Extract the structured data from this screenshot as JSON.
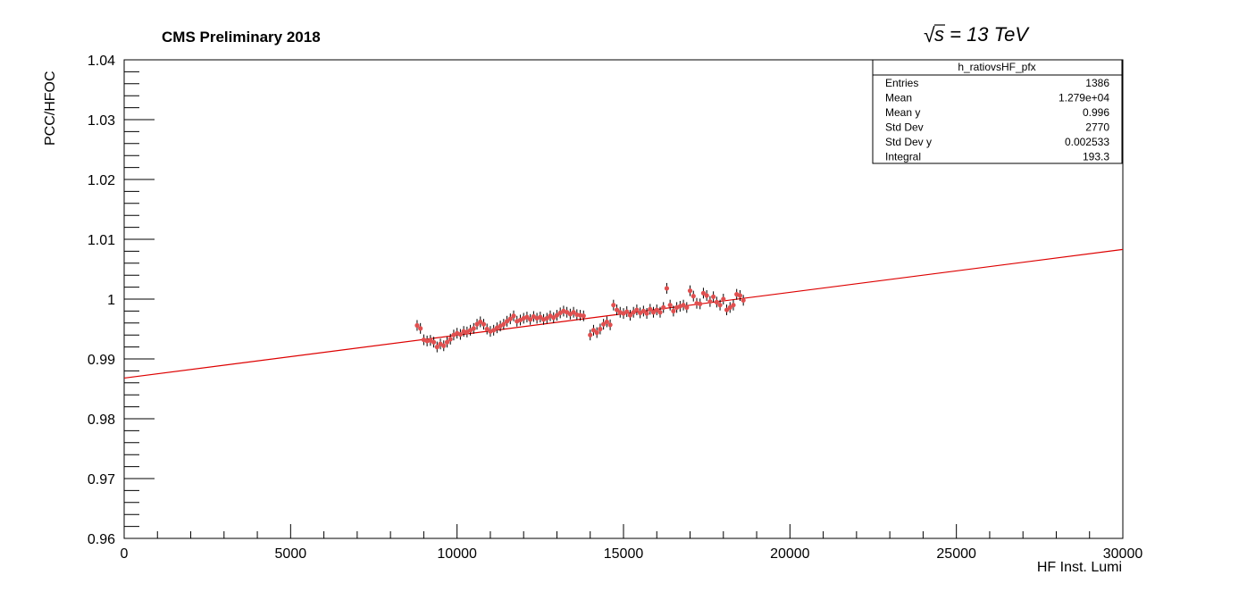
{
  "header": {
    "title": "CMS Preliminary 2018",
    "energy_label": "s = 13 TeV"
  },
  "stats_box": {
    "name": "h_ratiovsHF_pfx",
    "rows": [
      {
        "label": "Entries",
        "value": "1386"
      },
      {
        "label": "Mean",
        "value": "1.279e+04"
      },
      {
        "label": "Mean y",
        "value": "0.996"
      },
      {
        "label": "Std Dev",
        "value": "2770"
      },
      {
        "label": "Std Dev y",
        "value": "0.002533"
      },
      {
        "label": "Integral",
        "value": "193.3"
      }
    ]
  },
  "colors": {
    "markers": "#e05050",
    "fit_line": "#dd0000",
    "error_bars": "#000000",
    "axes": "#000000"
  },
  "chart_data": {
    "type": "scatter",
    "xlabel": "HF Inst. Lumi",
    "ylabel": "PCC/HFOC",
    "xlim": [
      0,
      30000
    ],
    "ylim": [
      0.96,
      1.04
    ],
    "x_ticks": [
      0,
      5000,
      10000,
      15000,
      20000,
      25000,
      30000
    ],
    "x_tick_labels": [
      "0",
      "5000",
      "10000",
      "15000",
      "20000",
      "25000",
      "30000"
    ],
    "y_ticks": [
      0.96,
      0.97,
      0.98,
      0.99,
      1.0,
      1.01,
      1.02,
      1.03,
      1.04
    ],
    "y_tick_labels": [
      "0.96",
      "0.97",
      "0.98",
      "0.99",
      "1",
      "1.01",
      "1.02",
      "1.03",
      "1.04"
    ],
    "grid": false,
    "legend": "none",
    "fit_line": {
      "x": [
        0,
        30000
      ],
      "y": [
        0.9868,
        1.0083
      ]
    },
    "series": [
      {
        "points": [
          [
            8800,
            0.9956
          ],
          [
            8900,
            0.9951
          ],
          [
            9000,
            0.9932
          ],
          [
            9100,
            0.993
          ],
          [
            9200,
            0.9931
          ],
          [
            9300,
            0.9928
          ],
          [
            9400,
            0.992
          ],
          [
            9500,
            0.9925
          ],
          [
            9600,
            0.9922
          ],
          [
            9700,
            0.9928
          ],
          [
            9800,
            0.9933
          ],
          [
            9900,
            0.994
          ],
          [
            10000,
            0.9943
          ],
          [
            10100,
            0.9941
          ],
          [
            10200,
            0.9946
          ],
          [
            10300,
            0.9945
          ],
          [
            10400,
            0.9948
          ],
          [
            10500,
            0.9951
          ],
          [
            10600,
            0.9958
          ],
          [
            10700,
            0.9962
          ],
          [
            10800,
            0.9958
          ],
          [
            10900,
            0.995
          ],
          [
            11000,
            0.9946
          ],
          [
            11100,
            0.9948
          ],
          [
            11200,
            0.9952
          ],
          [
            11300,
            0.9955
          ],
          [
            11400,
            0.9958
          ],
          [
            11500,
            0.9963
          ],
          [
            11600,
            0.9967
          ],
          [
            11700,
            0.9972
          ],
          [
            11800,
            0.9963
          ],
          [
            11900,
            0.9965
          ],
          [
            12000,
            0.9968
          ],
          [
            12100,
            0.997
          ],
          [
            12200,
            0.9966
          ],
          [
            12300,
            0.9971
          ],
          [
            12400,
            0.9968
          ],
          [
            12500,
            0.997
          ],
          [
            12600,
            0.9966
          ],
          [
            12700,
            0.9968
          ],
          [
            12800,
            0.9972
          ],
          [
            12900,
            0.9969
          ],
          [
            13000,
            0.9973
          ],
          [
            13100,
            0.9977
          ],
          [
            13200,
            0.998
          ],
          [
            13300,
            0.9978
          ],
          [
            13400,
            0.9975
          ],
          [
            13500,
            0.9978
          ],
          [
            13600,
            0.9974
          ],
          [
            13700,
            0.9973
          ],
          [
            13800,
            0.9972
          ],
          [
            14000,
            0.994
          ],
          [
            14100,
            0.9948
          ],
          [
            14200,
            0.9944
          ],
          [
            14300,
            0.995
          ],
          [
            14400,
            0.9958
          ],
          [
            14500,
            0.9962
          ],
          [
            14600,
            0.9957
          ],
          [
            14700,
            0.999
          ],
          [
            14800,
            0.9982
          ],
          [
            14900,
            0.9978
          ],
          [
            15000,
            0.9976
          ],
          [
            15100,
            0.9979
          ],
          [
            15200,
            0.9973
          ],
          [
            15300,
            0.9978
          ],
          [
            15400,
            0.9982
          ],
          [
            15500,
            0.9977
          ],
          [
            15600,
            0.998
          ],
          [
            15700,
            0.9976
          ],
          [
            15800,
            0.9983
          ],
          [
            15900,
            0.9978
          ],
          [
            16000,
            0.9982
          ],
          [
            16100,
            0.9978
          ],
          [
            16200,
            0.9986
          ],
          [
            16300,
            1.0018
          ],
          [
            16400,
            0.999
          ],
          [
            16500,
            0.998
          ],
          [
            16600,
            0.9986
          ],
          [
            16700,
            0.9988
          ],
          [
            16800,
            0.999
          ],
          [
            16900,
            0.9986
          ],
          [
            17000,
            1.0014
          ],
          [
            17100,
            1.0005
          ],
          [
            17200,
            0.9993
          ],
          [
            17300,
            0.9992
          ],
          [
            17400,
            1.001
          ],
          [
            17500,
            1.0006
          ],
          [
            17600,
            0.9996
          ],
          [
            17700,
            1.0004
          ],
          [
            17800,
            0.9995
          ],
          [
            17900,
            0.999
          ],
          [
            18000,
            1.0
          ],
          [
            18100,
            0.9982
          ],
          [
            18200,
            0.9986
          ],
          [
            18300,
            0.999
          ],
          [
            18400,
            1.0008
          ],
          [
            18500,
            1.0006
          ],
          [
            18600,
            0.9998
          ]
        ]
      }
    ]
  }
}
